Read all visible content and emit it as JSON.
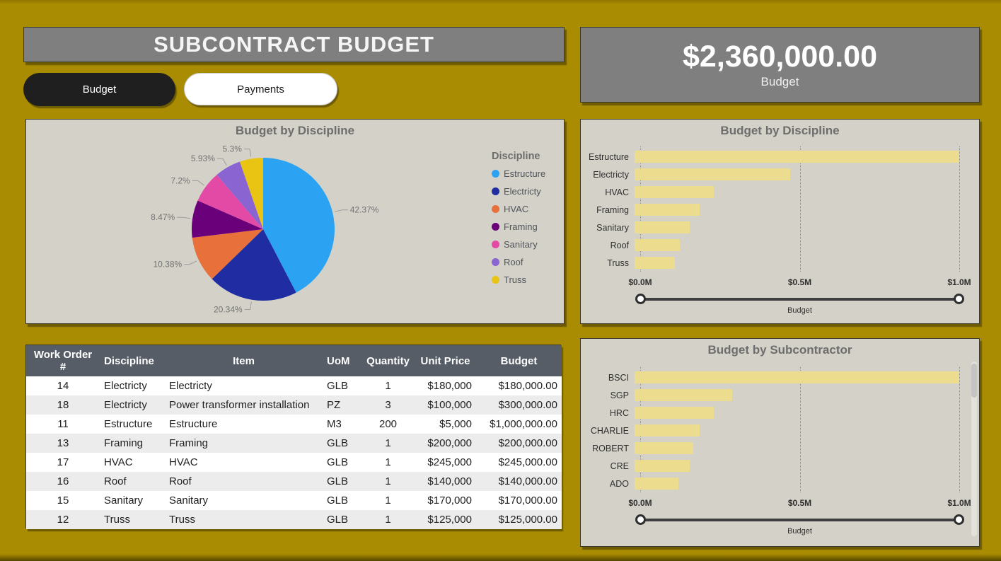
{
  "header": {
    "title": "SUBCONTRACT BUDGET"
  },
  "nav": {
    "budget_label": "Budget",
    "payments_label": "Payments"
  },
  "kpi": {
    "value": "$2,360,000.00",
    "label": "Budget"
  },
  "colors": {
    "background": "#A98C02",
    "panel": "#D3D1C8",
    "header_bar": "#7F7F7F",
    "kpi_card": "#7F7F7F",
    "table_header": "#565D66",
    "bar_fill": "#EBDD8D",
    "active_tab_bg": "#1F1F1F"
  },
  "chart_data": [
    {
      "type": "pie",
      "title": "Budget by Discipline",
      "legend_title": "Discipline",
      "legend_position": "right",
      "categories": [
        "Estructure",
        "Electricty",
        "HVAC",
        "Framing",
        "Sanitary",
        "Roof",
        "Truss"
      ],
      "values": [
        42.37,
        20.34,
        10.38,
        8.47,
        7.2,
        5.93,
        5.3
      ],
      "labels": [
        "42.37%",
        "20.34%",
        "10.38%",
        "8.47%",
        "7.2%",
        "5.93%",
        "5.3%"
      ],
      "colors": [
        "#2BA2F2",
        "#202DA2",
        "#E8703A",
        "#6B007B",
        "#E24AA6",
        "#8A64D0",
        "#E9C412"
      ]
    },
    {
      "type": "bar",
      "title": "Budget by Discipline",
      "orientation": "horizontal",
      "categories": [
        "Estructure",
        "Electricty",
        "HVAC",
        "Framing",
        "Sanitary",
        "Roof",
        "Truss"
      ],
      "values": [
        1.0,
        0.48,
        0.245,
        0.2,
        0.17,
        0.14,
        0.125
      ],
      "unit": "$M",
      "xlim": [
        0,
        1.0
      ],
      "ticks": [
        "$0.0M",
        "$0.5M",
        "$1.0M"
      ],
      "xlabel": "Budget",
      "bar_color": "#EBDD8D",
      "grid": "dotted-vertical"
    },
    {
      "type": "bar",
      "title": "Budget by Subcontractor",
      "orientation": "horizontal",
      "categories": [
        "BSCI",
        "SGP",
        "HRC",
        "CHARLIE",
        "ROBERT",
        "CRE",
        "ADO"
      ],
      "values": [
        1.0,
        0.3,
        0.245,
        0.2,
        0.18,
        0.17,
        0.135
      ],
      "unit": "$M",
      "xlim": [
        0,
        1.0
      ],
      "ticks": [
        "$0.0M",
        "$0.5M",
        "$1.0M"
      ],
      "xlabel": "Budget",
      "bar_color": "#EBDD8D",
      "grid": "dotted-vertical"
    }
  ],
  "table": {
    "columns": [
      "Work Order #",
      "Discipline",
      "Item",
      "UoM",
      "Quantity",
      "Unit Price",
      "Budget"
    ],
    "rows": [
      [
        "14",
        "Electricty",
        "Electricty",
        "GLB",
        "1",
        "$180,000",
        "$180,000.00"
      ],
      [
        "18",
        "Electricty",
        "Power transformer installation",
        "PZ",
        "3",
        "$100,000",
        "$300,000.00"
      ],
      [
        "11",
        "Estructure",
        "Estructure",
        "M3",
        "200",
        "$5,000",
        "$1,000,000.00"
      ],
      [
        "13",
        "Framing",
        "Framing",
        "GLB",
        "1",
        "$200,000",
        "$200,000.00"
      ],
      [
        "17",
        "HVAC",
        "HVAC",
        "GLB",
        "1",
        "$245,000",
        "$245,000.00"
      ],
      [
        "16",
        "Roof",
        "Roof",
        "GLB",
        "1",
        "$140,000",
        "$140,000.00"
      ],
      [
        "15",
        "Sanitary",
        "Sanitary",
        "GLB",
        "1",
        "$170,000",
        "$170,000.00"
      ],
      [
        "12",
        "Truss",
        "Truss",
        "GLB",
        "1",
        "$125,000",
        "$125,000.00"
      ]
    ]
  }
}
